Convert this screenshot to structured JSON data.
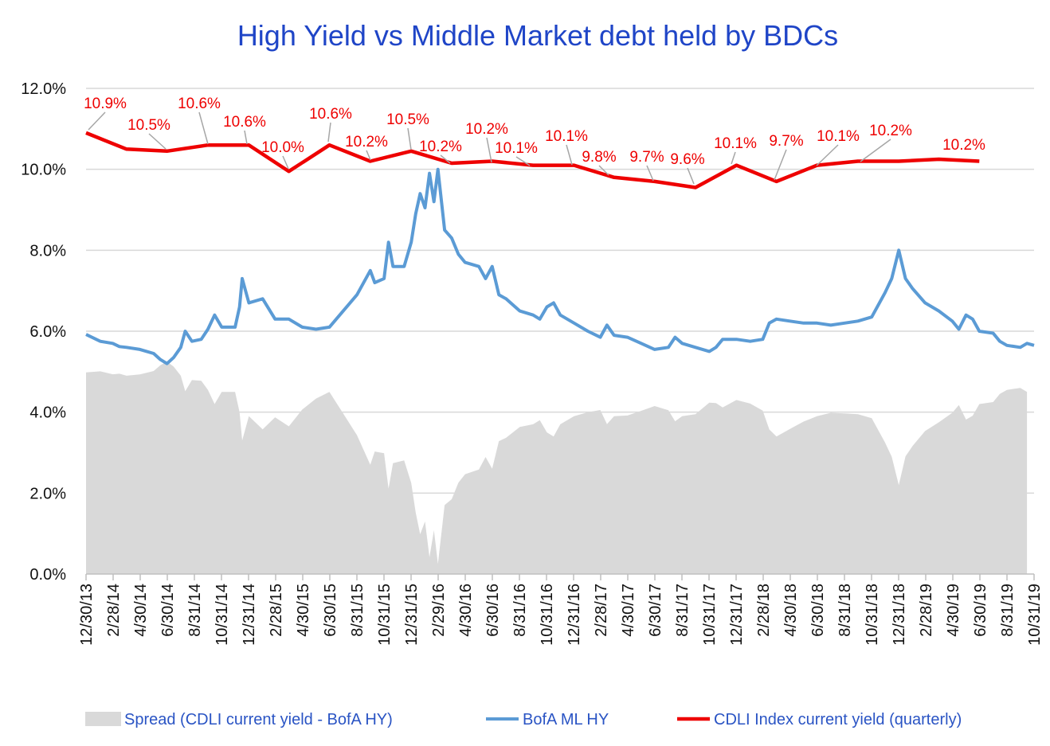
{
  "chart_data": {
    "type": "line",
    "title": "High Yield  vs  Middle Market debt held by BDCs",
    "ylim": [
      0,
      12
    ],
    "yticks": [
      "0.0%",
      "2.0%",
      "4.0%",
      "6.0%",
      "8.0%",
      "10.0%",
      "12.0%"
    ],
    "ytick_values": [
      0,
      2,
      4,
      6,
      8,
      10,
      12
    ],
    "x_range": [
      "2013-12-30",
      "2019-10-31"
    ],
    "xticks": [
      "12/30/13",
      "2/28/14",
      "4/30/14",
      "6/30/14",
      "8/31/14",
      "10/31/14",
      "12/31/14",
      "2/28/15",
      "4/30/15",
      "6/30/15",
      "8/31/15",
      "10/31/15",
      "12/31/15",
      "2/29/16",
      "4/30/16",
      "6/30/16",
      "8/31/16",
      "10/31/16",
      "12/31/16",
      "2/28/17",
      "4/30/17",
      "6/30/17",
      "8/31/17",
      "10/31/17",
      "12/31/17",
      "2/28/18",
      "4/30/18",
      "6/30/18",
      "8/31/18",
      "10/31/18",
      "12/31/18",
      "2/28/19",
      "4/30/19",
      "6/30/19",
      "8/31/19",
      "10/31/19"
    ],
    "grid": "horizontal",
    "legend_position": "bottom",
    "series": [
      {
        "name": "Spread (CDLI current yield - BofA HY)",
        "kind": "area",
        "color": "#d9d9d9"
      },
      {
        "name": "BofA ML HY",
        "kind": "line",
        "color": "#5b9bd5",
        "points": [
          [
            "2013-12-30",
            5.92
          ],
          [
            "2014-01-31",
            5.75
          ],
          [
            "2014-02-28",
            5.7
          ],
          [
            "2014-03-15",
            5.62
          ],
          [
            "2014-03-31",
            5.6
          ],
          [
            "2014-04-30",
            5.55
          ],
          [
            "2014-05-31",
            5.45
          ],
          [
            "2014-06-15",
            5.3
          ],
          [
            "2014-06-30",
            5.2
          ],
          [
            "2014-07-15",
            5.35
          ],
          [
            "2014-07-31",
            5.6
          ],
          [
            "2014-08-10",
            6.0
          ],
          [
            "2014-08-25",
            5.75
          ],
          [
            "2014-09-15",
            5.8
          ],
          [
            "2014-09-30",
            6.05
          ],
          [
            "2014-10-15",
            6.4
          ],
          [
            "2014-10-31",
            6.1
          ],
          [
            "2014-11-30",
            6.1
          ],
          [
            "2014-12-10",
            6.6
          ],
          [
            "2014-12-16",
            7.3
          ],
          [
            "2014-12-31",
            6.7
          ],
          [
            "2015-01-31",
            6.8
          ],
          [
            "2015-02-28",
            6.3
          ],
          [
            "2015-03-31",
            6.3
          ],
          [
            "2015-04-30",
            6.1
          ],
          [
            "2015-05-31",
            6.05
          ],
          [
            "2015-06-30",
            6.1
          ],
          [
            "2015-07-31",
            6.5
          ],
          [
            "2015-08-31",
            6.9
          ],
          [
            "2015-09-30",
            7.5
          ],
          [
            "2015-10-10",
            7.2
          ],
          [
            "2015-10-31",
            7.3
          ],
          [
            "2015-11-10",
            8.2
          ],
          [
            "2015-11-20",
            7.6
          ],
          [
            "2015-12-15",
            7.6
          ],
          [
            "2015-12-31",
            8.2
          ],
          [
            "2016-01-10",
            8.9
          ],
          [
            "2016-01-20",
            9.4
          ],
          [
            "2016-01-31",
            9.05
          ],
          [
            "2016-02-10",
            9.9
          ],
          [
            "2016-02-20",
            9.2
          ],
          [
            "2016-02-29",
            10.0
          ],
          [
            "2016-03-15",
            8.5
          ],
          [
            "2016-03-31",
            8.3
          ],
          [
            "2016-04-15",
            7.9
          ],
          [
            "2016-04-30",
            7.7
          ],
          [
            "2016-05-31",
            7.6
          ],
          [
            "2016-06-15",
            7.3
          ],
          [
            "2016-06-30",
            7.6
          ],
          [
            "2016-07-15",
            6.9
          ],
          [
            "2016-07-31",
            6.8
          ],
          [
            "2016-08-31",
            6.5
          ],
          [
            "2016-09-30",
            6.4
          ],
          [
            "2016-10-15",
            6.3
          ],
          [
            "2016-10-31",
            6.6
          ],
          [
            "2016-11-15",
            6.7
          ],
          [
            "2016-11-30",
            6.4
          ],
          [
            "2016-12-31",
            6.2
          ],
          [
            "2017-01-31",
            6.0
          ],
          [
            "2017-02-28",
            5.85
          ],
          [
            "2017-03-15",
            6.15
          ],
          [
            "2017-03-31",
            5.9
          ],
          [
            "2017-04-30",
            5.85
          ],
          [
            "2017-05-31",
            5.7
          ],
          [
            "2017-06-30",
            5.55
          ],
          [
            "2017-07-31",
            5.6
          ],
          [
            "2017-08-15",
            5.85
          ],
          [
            "2017-08-31",
            5.7
          ],
          [
            "2017-09-30",
            5.6
          ],
          [
            "2017-10-31",
            5.5
          ],
          [
            "2017-11-15",
            5.6
          ],
          [
            "2017-11-30",
            5.8
          ],
          [
            "2017-12-31",
            5.8
          ],
          [
            "2018-01-31",
            5.75
          ],
          [
            "2018-02-28",
            5.8
          ],
          [
            "2018-03-15",
            6.2
          ],
          [
            "2018-03-31",
            6.3
          ],
          [
            "2018-04-30",
            6.25
          ],
          [
            "2018-05-31",
            6.2
          ],
          [
            "2018-06-30",
            6.2
          ],
          [
            "2018-07-31",
            6.15
          ],
          [
            "2018-08-31",
            6.2
          ],
          [
            "2018-09-30",
            6.25
          ],
          [
            "2018-10-31",
            6.35
          ],
          [
            "2018-11-30",
            6.95
          ],
          [
            "2018-12-15",
            7.3
          ],
          [
            "2018-12-31",
            8.0
          ],
          [
            "2019-01-15",
            7.3
          ],
          [
            "2019-01-31",
            7.05
          ],
          [
            "2019-02-28",
            6.7
          ],
          [
            "2019-03-31",
            6.5
          ],
          [
            "2019-04-30",
            6.25
          ],
          [
            "2019-05-15",
            6.05
          ],
          [
            "2019-05-31",
            6.4
          ],
          [
            "2019-06-15",
            6.3
          ],
          [
            "2019-06-30",
            6.0
          ],
          [
            "2019-07-31",
            5.95
          ],
          [
            "2019-08-15",
            5.75
          ],
          [
            "2019-08-31",
            5.65
          ],
          [
            "2019-09-30",
            5.6
          ],
          [
            "2019-10-15",
            5.7
          ],
          [
            "2019-10-31",
            5.65
          ]
        ]
      },
      {
        "name": "CDLI Index current yield (quarterly)",
        "kind": "line",
        "color": "#ee0000",
        "points": [
          [
            "2013-12-30",
            10.9
          ],
          [
            "2014-03-31",
            10.5
          ],
          [
            "2014-06-30",
            10.45
          ],
          [
            "2014-09-30",
            10.6
          ],
          [
            "2014-12-31",
            10.6
          ],
          [
            "2015-03-31",
            9.95
          ],
          [
            "2015-06-30",
            10.6
          ],
          [
            "2015-09-30",
            10.2
          ],
          [
            "2015-12-31",
            10.45
          ],
          [
            "2016-03-31",
            10.15
          ],
          [
            "2016-06-30",
            10.2
          ],
          [
            "2016-09-30",
            10.1
          ],
          [
            "2016-12-31",
            10.1
          ],
          [
            "2017-03-31",
            9.8
          ],
          [
            "2017-06-30",
            9.7
          ],
          [
            "2017-09-30",
            9.55
          ],
          [
            "2017-12-31",
            10.1
          ],
          [
            "2018-03-31",
            9.7
          ],
          [
            "2018-06-30",
            10.1
          ],
          [
            "2018-09-30",
            10.2
          ],
          [
            "2018-12-31",
            10.2
          ],
          [
            "2019-03-31",
            10.25
          ],
          [
            "2019-06-30",
            10.2
          ]
        ]
      }
    ],
    "data_labels": [
      "10.9%",
      "10.5%",
      "10.6%",
      "10.6%",
      "10.0%",
      "10.6%",
      "10.2%",
      "10.5%",
      "10.2%",
      "10.2%",
      "10.1%",
      "10.1%",
      "9.8%",
      "9.7%",
      "9.6%",
      "10.1%",
      "9.7%",
      "10.1%",
      "10.2%",
      "10.2%"
    ]
  }
}
